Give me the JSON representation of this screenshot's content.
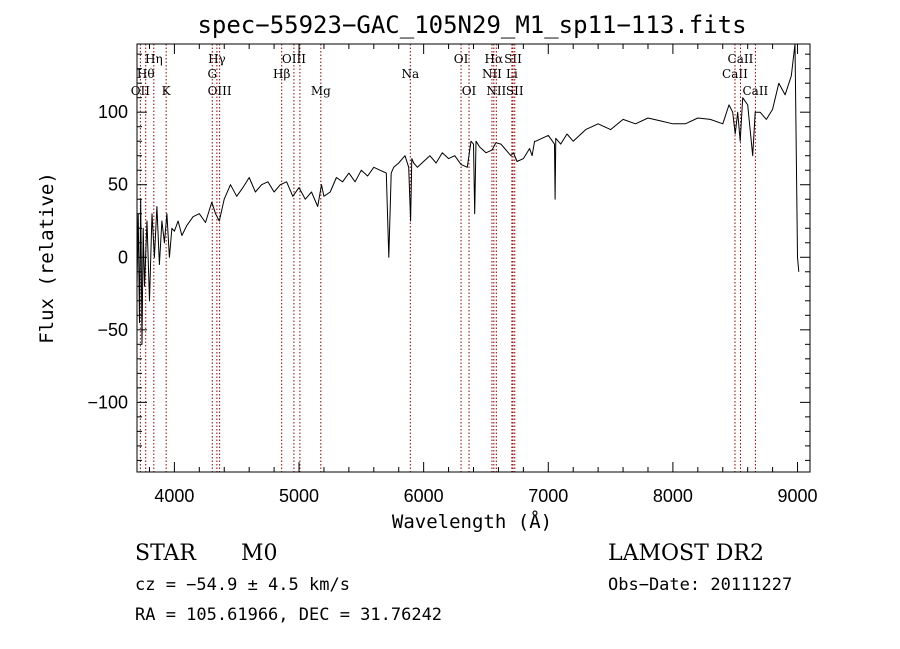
{
  "chart_data": {
    "type": "line",
    "title": "spec−55923−GAC_105N29_M1_sp11−113.fits",
    "xlabel": "Wavelength (Å)",
    "ylabel": "Flux (relative)",
    "xlim": [
      3700,
      9100
    ],
    "ylim": [
      -148,
      147
    ],
    "x_ticks": [
      {
        "value": 4000,
        "label": "4000"
      },
      {
        "value": 5000,
        "label": "5000"
      },
      {
        "value": 6000,
        "label": "6000"
      },
      {
        "value": 7000,
        "label": "7000"
      },
      {
        "value": 8000,
        "label": "8000"
      },
      {
        "value": 9000,
        "label": "9000"
      }
    ],
    "y_ticks": [
      {
        "value": -100,
        "label": "−100"
      },
      {
        "value": -50,
        "label": "−50"
      },
      {
        "value": 0,
        "label": "0"
      },
      {
        "value": 50,
        "label": "50"
      },
      {
        "value": 100,
        "label": "100"
      }
    ],
    "grid": false,
    "line_color": "#000000",
    "marker_color": "#8b0000",
    "series": [
      {
        "x": [
          3700,
          3710,
          3720,
          3730,
          3740,
          3750,
          3760,
          3780,
          3800,
          3820,
          3840,
          3860,
          3880,
          3900,
          3920,
          3940,
          3960,
          3980,
          4000,
          4030,
          4060,
          4100,
          4150,
          4200,
          4250,
          4300,
          4330,
          4360,
          4400,
          4450,
          4500,
          4550,
          4600,
          4650,
          4700,
          4750,
          4800,
          4850,
          4900,
          4950,
          5000,
          5050,
          5100,
          5150,
          5180,
          5200,
          5250,
          5300,
          5350,
          5400,
          5450,
          5500,
          5550,
          5600,
          5650,
          5700,
          5720,
          5740,
          5760,
          5800,
          5850,
          5880,
          5895,
          5905,
          5920,
          5950,
          6000,
          6050,
          6100,
          6150,
          6200,
          6250,
          6300,
          6350,
          6380,
          6400,
          6410,
          6420,
          6450,
          6500,
          6550,
          6580,
          6620,
          6650,
          6700,
          6720,
          6750,
          6800,
          6850,
          6870,
          6890,
          6900,
          6950,
          7000,
          7050,
          7055,
          7060,
          7100,
          7150,
          7200,
          7300,
          7400,
          7500,
          7600,
          7700,
          7800,
          7900,
          8000,
          8100,
          8200,
          8300,
          8400,
          8450,
          8480,
          8500,
          8520,
          8540,
          8560,
          8600,
          8640,
          8660,
          8700,
          8750,
          8800,
          8850,
          8900,
          8950,
          8980,
          9000,
          9010
        ],
        "y": [
          -20,
          30,
          -45,
          40,
          -60,
          20,
          -20,
          25,
          -30,
          30,
          0,
          35,
          -5,
          25,
          10,
          30,
          0,
          20,
          18,
          25,
          15,
          22,
          28,
          30,
          24,
          38,
          30,
          25,
          40,
          50,
          42,
          48,
          55,
          45,
          50,
          52,
          45,
          50,
          52,
          42,
          48,
          40,
          45,
          35,
          50,
          42,
          45,
          55,
          52,
          58,
          52,
          60,
          56,
          62,
          60,
          58,
          0,
          58,
          62,
          65,
          70,
          62,
          25,
          68,
          65,
          62,
          66,
          70,
          65,
          72,
          68,
          70,
          64,
          62,
          80,
          78,
          30,
          80,
          76,
          72,
          74,
          79,
          78,
          75,
          70,
          72,
          66,
          68,
          75,
          70,
          80,
          80,
          82,
          84,
          78,
          40,
          82,
          78,
          85,
          80,
          88,
          92,
          88,
          95,
          92,
          96,
          94,
          92,
          92,
          96,
          95,
          92,
          105,
          100,
          85,
          100,
          80,
          110,
          105,
          70,
          100,
          100,
          95,
          102,
          120,
          112,
          125,
          150,
          0,
          -10
        ]
      }
    ],
    "line_markers": [
      {
        "wavelength": 3727,
        "label": "OII",
        "tier": 3
      },
      {
        "wavelength": 3770,
        "label": "Hθ",
        "tier": 2
      },
      {
        "wavelength": 3835,
        "label": "Hη",
        "tier": 1
      },
      {
        "wavelength": 3934,
        "label": "K",
        "tier": 3
      },
      {
        "wavelength": 4341,
        "label": "Hγ",
        "tier": 1
      },
      {
        "wavelength": 4304,
        "label": "G",
        "tier": 2
      },
      {
        "wavelength": 4363,
        "label": "OIII",
        "tier": 3
      },
      {
        "wavelength": 4861,
        "label": "Hβ",
        "tier": 2
      },
      {
        "wavelength": 4959,
        "label": "OIII",
        "tier": 1
      },
      {
        "wavelength": 5007,
        "label": "",
        "tier": 0
      },
      {
        "wavelength": 5175,
        "label": "Mg",
        "tier": 3
      },
      {
        "wavelength": 5893,
        "label": "Na",
        "tier": 2
      },
      {
        "wavelength": 6300,
        "label": "OI",
        "tier": 1
      },
      {
        "wavelength": 6364,
        "label": "OI",
        "tier": 3
      },
      {
        "wavelength": 6548,
        "label": "NII",
        "tier": 2
      },
      {
        "wavelength": 6563,
        "label": "Hα",
        "tier": 1
      },
      {
        "wavelength": 6583,
        "label": "NII",
        "tier": 3
      },
      {
        "wavelength": 6708,
        "label": "Li",
        "tier": 2
      },
      {
        "wavelength": 6717,
        "label": "SII",
        "tier": 1
      },
      {
        "wavelength": 6731,
        "label": "SII",
        "tier": 3
      },
      {
        "wavelength": 8498,
        "label": "CaII",
        "tier": 2
      },
      {
        "wavelength": 8542,
        "label": "CaII",
        "tier": 1
      },
      {
        "wavelength": 8662,
        "label": "CaII",
        "tier": 3
      }
    ]
  },
  "info": {
    "class": "STAR",
    "subclass": "M0",
    "survey": "LAMOST DR2",
    "cz": "cz = −54.9 ± 4.5 km/s",
    "obs_date": "Obs−Date: 20111227",
    "radec": "RA = 105.61966, DEC =  31.76242"
  }
}
